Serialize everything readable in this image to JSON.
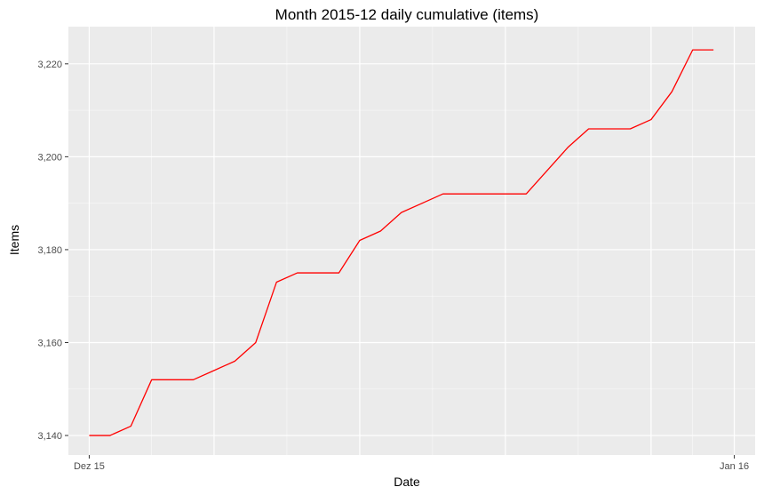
{
  "chart_data": {
    "type": "line",
    "title": "Month 2015-12 daily cumulative (items)",
    "xlabel": "Date",
    "ylabel": "Items",
    "x_axis_type": "date",
    "x": [
      "2015-12-01",
      "2015-12-02",
      "2015-12-03",
      "2015-12-04",
      "2015-12-05",
      "2015-12-06",
      "2015-12-07",
      "2015-12-08",
      "2015-12-09",
      "2015-12-10",
      "2015-12-11",
      "2015-12-12",
      "2015-12-13",
      "2015-12-14",
      "2015-12-15",
      "2015-12-16",
      "2015-12-17",
      "2015-12-18",
      "2015-12-19",
      "2015-12-20",
      "2015-12-21",
      "2015-12-22",
      "2015-12-23",
      "2015-12-24",
      "2015-12-25",
      "2015-12-26",
      "2015-12-27",
      "2015-12-28",
      "2015-12-29",
      "2015-12-30",
      "2015-12-31"
    ],
    "series": [
      {
        "color": "#ff0000",
        "values": [
          3140,
          3140,
          3142,
          3152,
          3152,
          3152,
          3154,
          3156,
          3160,
          3173,
          3175,
          3175,
          3175,
          3182,
          3184,
          3188,
          3190,
          3192,
          3192,
          3192,
          3192,
          3192,
          3197,
          3202,
          3206,
          3206,
          3206,
          3208,
          3214,
          3223,
          3223
        ]
      }
    ],
    "xlim": [
      "2015-11-30",
      "2016-01-02"
    ],
    "ylim": [
      3135.8,
      3228.0
    ],
    "x_ticks": [
      {
        "value": "2015-12-01",
        "label": "Dez 15"
      },
      {
        "value": "2016-01-01",
        "label": "Jan 16"
      }
    ],
    "x_grid_major": [
      "2015-12-01",
      "2015-12-07",
      "2015-12-14",
      "2015-12-21",
      "2015-12-28",
      "2016-01-01"
    ],
    "y_ticks": [
      {
        "value": 3140,
        "label": "3,140"
      },
      {
        "value": 3160,
        "label": "3,160"
      },
      {
        "value": 3180,
        "label": "3,180"
      },
      {
        "value": 3200,
        "label": "3,200"
      },
      {
        "value": 3220,
        "label": "3,220"
      }
    ],
    "grid": true,
    "legend": "none",
    "panel_background": "#ebebeb",
    "grid_color": "#ffffff"
  }
}
